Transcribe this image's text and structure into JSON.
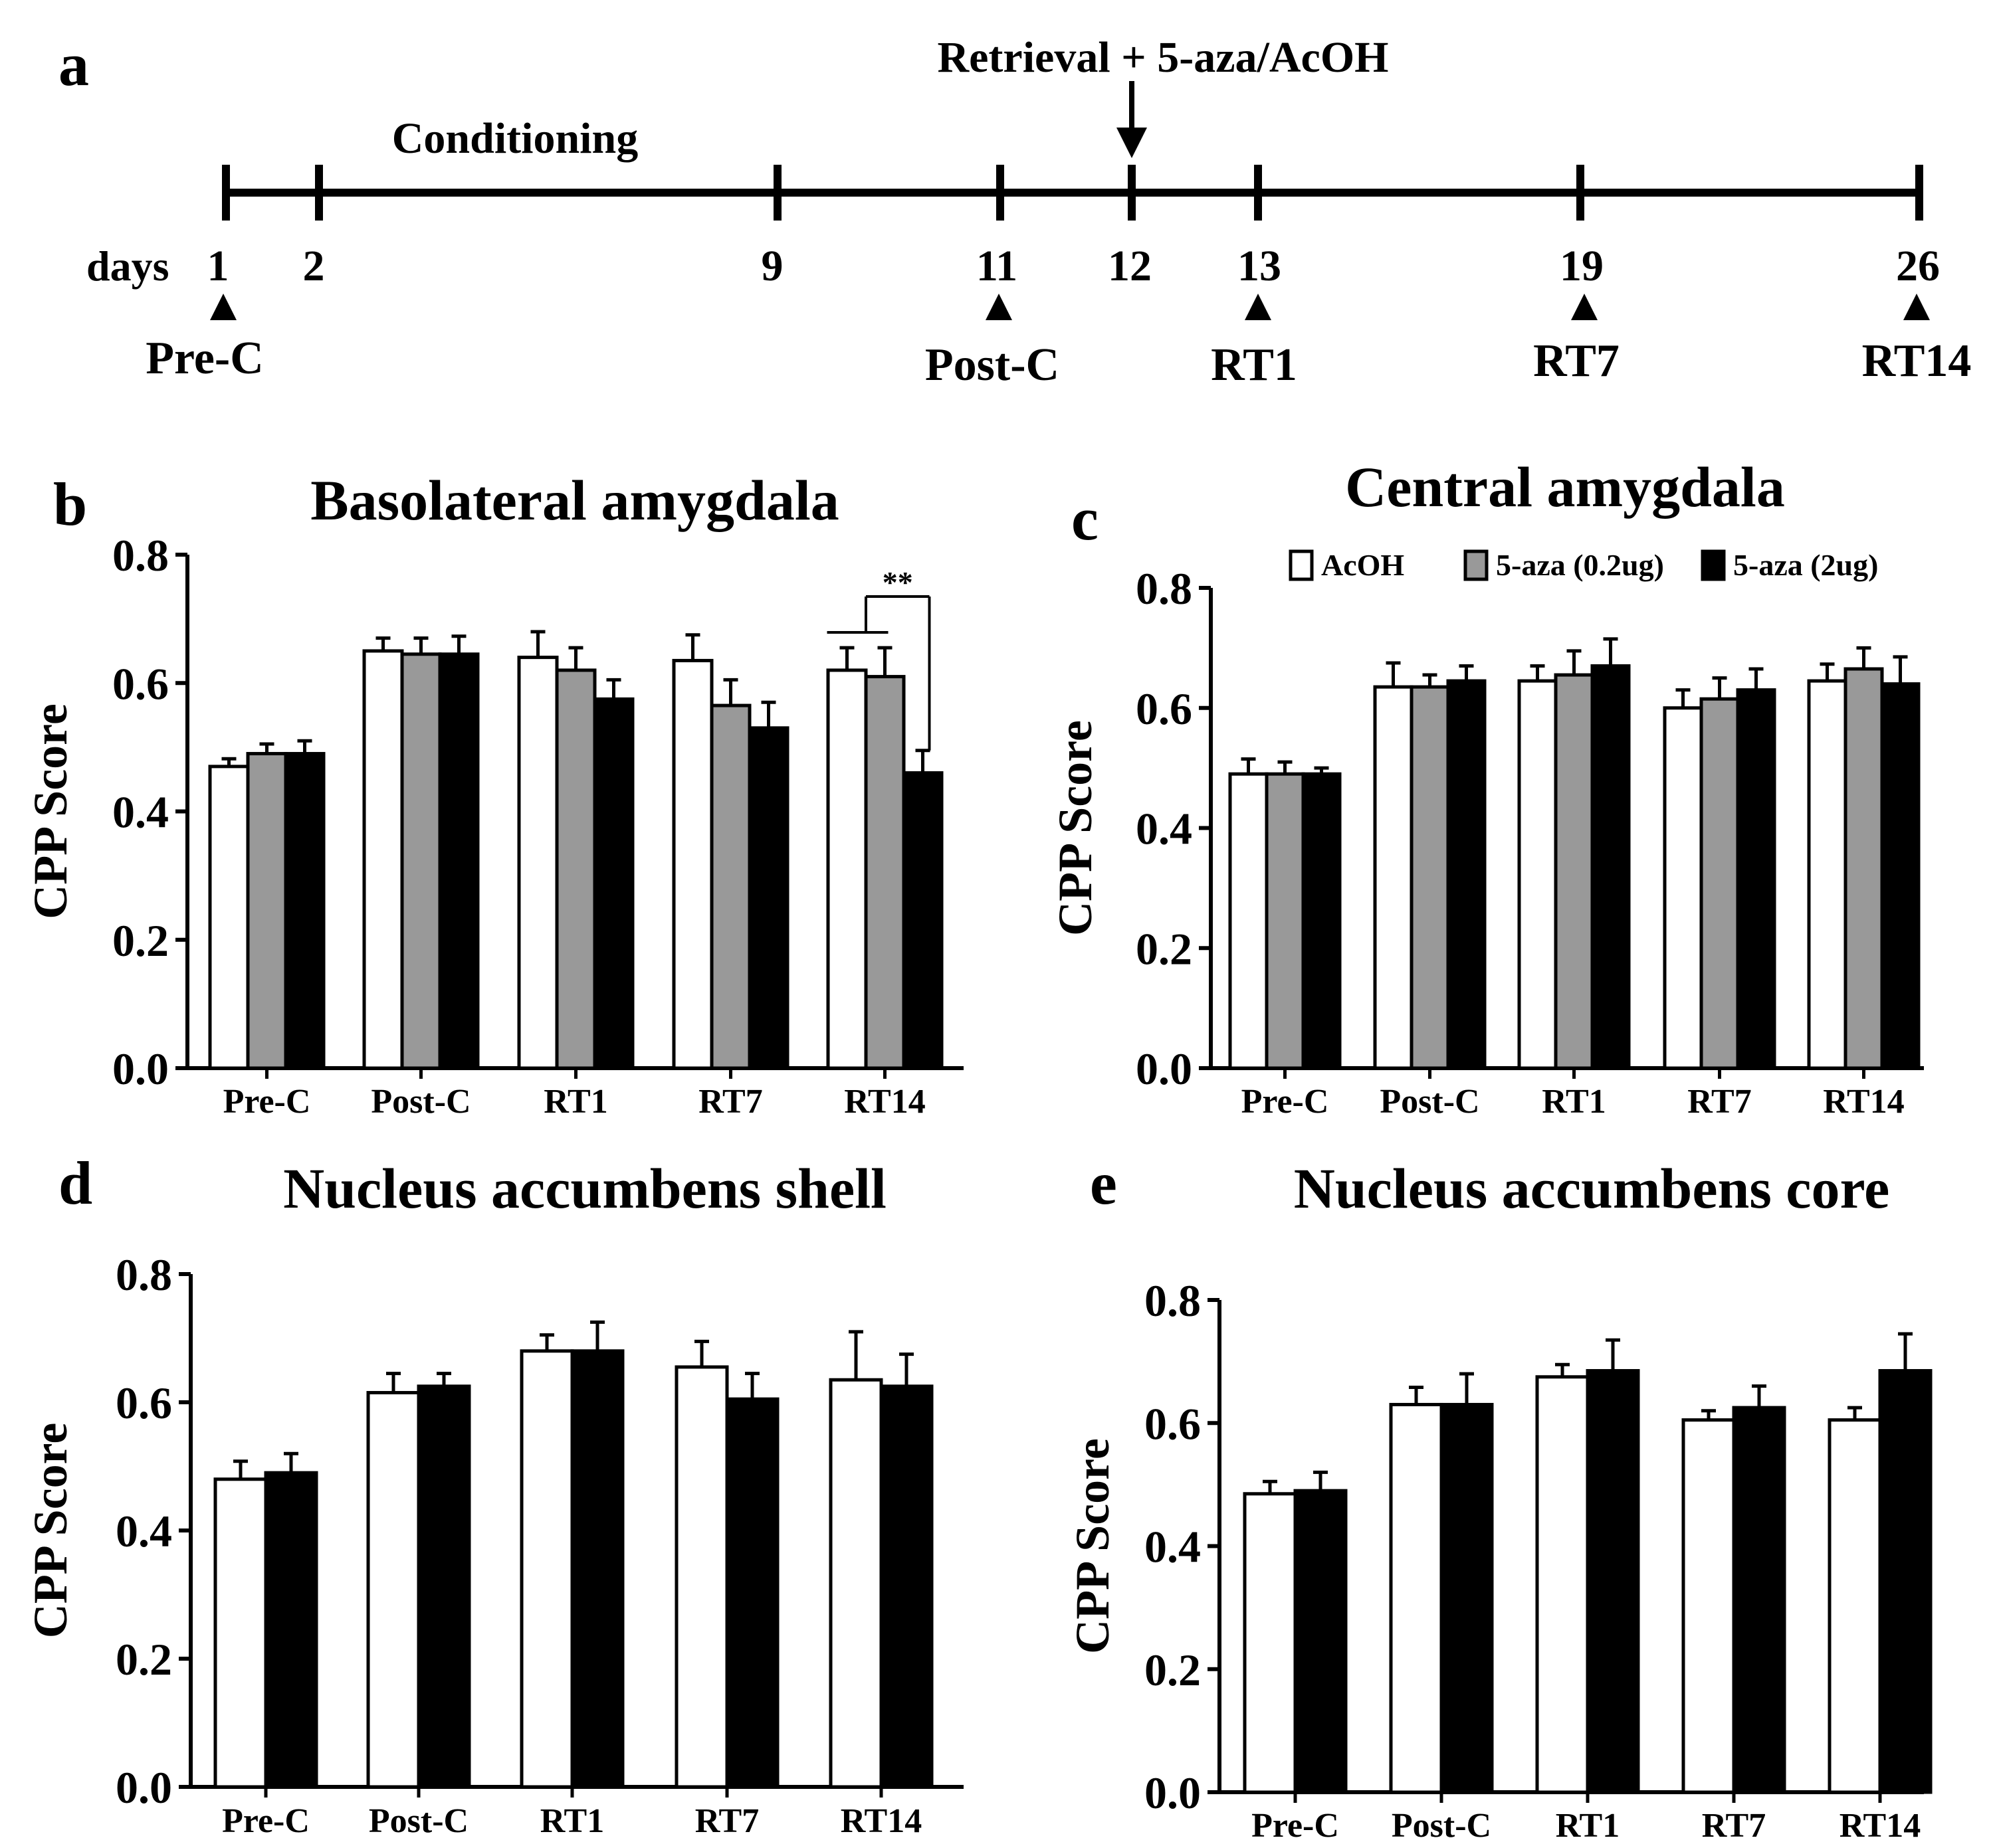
{
  "timeline": {
    "panel_label": "a",
    "conditioning_label": "Conditioning",
    "retrieval_label": "Retrieval + 5-aza/AcOH",
    "days_label": "days",
    "days": [
      "1",
      "2",
      "9",
      "11",
      "12",
      "13",
      "19",
      "26"
    ],
    "tests": [
      {
        "day": "1",
        "label": "Pre-C"
      },
      {
        "day": "11",
        "label": "Post-C"
      },
      {
        "day": "13",
        "label": "RT1"
      },
      {
        "day": "19",
        "label": "RT7"
      },
      {
        "day": "26",
        "label": "RT14"
      }
    ]
  },
  "legend": {
    "items": [
      {
        "label": "AcOH",
        "color": "#ffffff"
      },
      {
        "label": "5-aza (0.2ug)",
        "color": "#999999"
      },
      {
        "label": "5-aza (2ug)",
        "color": "#000000"
      }
    ]
  },
  "chart_data": [
    {
      "panel_label": "b",
      "type": "bar",
      "title": "Basolateral amygdala",
      "ylabel": "CPP Score",
      "xlabel": "",
      "ylim": [
        0,
        0.8
      ],
      "yticks": [
        "0.0",
        "0.2",
        "0.4",
        "0.6",
        "0.8"
      ],
      "categories": [
        "Pre-C",
        "Post-C",
        "RT1",
        "RT7",
        "RT14"
      ],
      "series": [
        {
          "name": "AcOH",
          "color": "#ffffff",
          "values": [
            0.47,
            0.65,
            0.64,
            0.635,
            0.62
          ],
          "errors": [
            0.012,
            0.02,
            0.04,
            0.04,
            0.035
          ]
        },
        {
          "name": "5-aza (0.2ug)",
          "color": "#999999",
          "values": [
            0.49,
            0.645,
            0.62,
            0.565,
            0.61
          ],
          "errors": [
            0.015,
            0.025,
            0.035,
            0.04,
            0.045
          ]
        },
        {
          "name": "5-aza (2ug)",
          "color": "#000000",
          "values": [
            0.49,
            0.645,
            0.575,
            0.53,
            0.46
          ],
          "errors": [
            0.02,
            0.028,
            0.03,
            0.04,
            0.035
          ]
        }
      ],
      "annotations": [
        "**"
      ]
    },
    {
      "panel_label": "c",
      "type": "bar",
      "title": "Central amygdala",
      "ylabel": "CPP Score",
      "xlabel": "",
      "ylim": [
        0,
        0.8
      ],
      "yticks": [
        "0.0",
        "0.2",
        "0.4",
        "0.6",
        "0.8"
      ],
      "categories": [
        "Pre-C",
        "Post-C",
        "RT1",
        "RT7",
        "RT14"
      ],
      "series": [
        {
          "name": "AcOH",
          "color": "#ffffff",
          "values": [
            0.49,
            0.635,
            0.645,
            0.6,
            0.645
          ],
          "errors": [
            0.025,
            0.04,
            0.025,
            0.03,
            0.028
          ]
        },
        {
          "name": "5-aza (0.2ug)",
          "color": "#999999",
          "values": [
            0.49,
            0.635,
            0.655,
            0.615,
            0.665
          ],
          "errors": [
            0.02,
            0.02,
            0.04,
            0.035,
            0.035
          ]
        },
        {
          "name": "5-aza (2ug)",
          "color": "#000000",
          "values": [
            0.49,
            0.645,
            0.67,
            0.63,
            0.64
          ],
          "errors": [
            0.01,
            0.025,
            0.045,
            0.035,
            0.045
          ]
        }
      ]
    },
    {
      "panel_label": "d",
      "type": "bar",
      "title": "Nucleus accumbens shell",
      "ylabel": "CPP Score",
      "xlabel": "",
      "ylim": [
        0,
        0.8
      ],
      "yticks": [
        "0.0",
        "0.2",
        "0.4",
        "0.6",
        "0.8"
      ],
      "categories": [
        "Pre-C",
        "Post-C",
        "RT1",
        "RT7",
        "RT14"
      ],
      "series": [
        {
          "name": "AcOH",
          "color": "#ffffff",
          "values": [
            0.48,
            0.615,
            0.68,
            0.655,
            0.635
          ],
          "errors": [
            0.028,
            0.03,
            0.025,
            0.04,
            0.075
          ]
        },
        {
          "name": "5-aza (2ug)",
          "color": "#000000",
          "values": [
            0.49,
            0.625,
            0.68,
            0.605,
            0.625
          ],
          "errors": [
            0.03,
            0.02,
            0.045,
            0.04,
            0.05
          ]
        }
      ]
    },
    {
      "panel_label": "e",
      "type": "bar",
      "title": "Nucleus accumbens core",
      "ylabel": "CPP Score",
      "xlabel": "",
      "ylim": [
        0,
        0.8
      ],
      "yticks": [
        "0.0",
        "0.2",
        "0.4",
        "0.6",
        "0.8"
      ],
      "categories": [
        "Pre-C",
        "Post-C",
        "RT1",
        "RT7",
        "RT14"
      ],
      "series": [
        {
          "name": "AcOH",
          "color": "#ffffff",
          "values": [
            0.485,
            0.63,
            0.675,
            0.605,
            0.605
          ],
          "errors": [
            0.02,
            0.028,
            0.02,
            0.015,
            0.02
          ]
        },
        {
          "name": "5-aza (2ug)",
          "color": "#000000",
          "values": [
            0.49,
            0.63,
            0.685,
            0.625,
            0.685
          ],
          "errors": [
            0.03,
            0.05,
            0.05,
            0.035,
            0.06
          ]
        }
      ]
    }
  ]
}
